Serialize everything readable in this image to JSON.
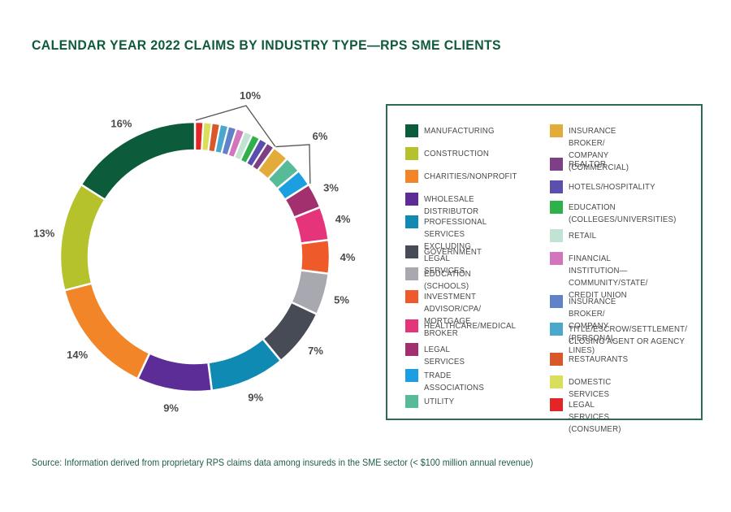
{
  "chart_data": {
    "type": "pie",
    "style": "donut",
    "title": "CALENDAR YEAR 2022 CLAIMS BY INDUSTRY TYPE—RPS SME CLIENTS",
    "source": "Source: Information derived from proprietary RPS claims data among insureds in the SME sector (< $100 million annual revenue)",
    "unit": "%",
    "start": "12 o'clock, clockwise",
    "slices": [
      {
        "name": "LEGAL SERVICES (CONSUMER)",
        "value": 1,
        "color": "#e42528",
        "group": "small"
      },
      {
        "name": "DOMESTIC SERVICES",
        "value": 1,
        "color": "#d9df5a",
        "group": "small"
      },
      {
        "name": "RESTAURANTS",
        "value": 1,
        "color": "#d9582a",
        "group": "small"
      },
      {
        "name": "TITLE/ESCROW/SETTLEMENT/\nCLOSING AGENT OR AGENCY",
        "value": 1,
        "color": "#4aa8cc",
        "group": "small"
      },
      {
        "name": "INSURANCE BROKER/\nCOMPANY (PERSONAL LINES)",
        "value": 1,
        "color": "#5f83c8",
        "group": "small"
      },
      {
        "name": "FINANCIAL INSTITUTION—\nCOMMUNITY/STATE/\nCREDIT UNION",
        "value": 1,
        "color": "#d275bd",
        "group": "small"
      },
      {
        "name": "RETAIL",
        "value": 1,
        "color": "#c2e3d3",
        "group": "small"
      },
      {
        "name": "EDUCATION\n(COLLEGES/UNIVERSITIES)",
        "value": 1,
        "color": "#2eb04a",
        "group": "small"
      },
      {
        "name": "HOTELS/HOSPITALITY",
        "value": 1,
        "color": "#5b4fae",
        "group": "small"
      },
      {
        "name": "REALTOR",
        "value": 1,
        "color": "#7f3f84",
        "group": "small"
      },
      {
        "name": "INSURANCE BROKER/\nCOMPANY (COMMERCIAL)",
        "value": 2,
        "color": "#e3ac3a",
        "group": "mid"
      },
      {
        "name": "UTILITY",
        "value": 2,
        "color": "#57bb99",
        "group": "mid"
      },
      {
        "name": "TRADE ASSOCIATIONS",
        "value": 2,
        "color": "#1b9fe0",
        "group": "mid"
      },
      {
        "name": "LEGAL SERVICES",
        "value": 3,
        "color": "#a2306f",
        "label": "3%"
      },
      {
        "name": "HEALTHCARE/MEDICAL",
        "value": 4,
        "color": "#e5347a",
        "label": "4%"
      },
      {
        "name": "INVESTMENT ADVISOR/CPA/\nMORTGAGE BROKER",
        "value": 4,
        "color": "#ef5a2b",
        "label": "4%"
      },
      {
        "name": "EDUCATION (SCHOOLS)",
        "value": 5,
        "color": "#a8a8b0",
        "label": "5%"
      },
      {
        "name": "GOVERNMENT",
        "value": 7,
        "color": "#474b55",
        "label": "7%"
      },
      {
        "name": "PROFESSIONAL SERVICES\nEXCLUDING LEGAL SERVICES",
        "value": 9,
        "color": "#0f8bb3",
        "label": "9%"
      },
      {
        "name": "WHOLESALE DISTRIBUTOR",
        "value": 9,
        "color": "#5c2d96",
        "label": "9%"
      },
      {
        "name": "CHARITIES/NONPROFIT",
        "value": 14,
        "color": "#f28528",
        "label": "14%"
      },
      {
        "name": "CONSTRUCTION",
        "value": 13,
        "color": "#b5c22c",
        "label": "13%"
      },
      {
        "name": "MANUFACTURING",
        "value": 16,
        "color": "#0c5b3a",
        "label": "16%"
      }
    ],
    "group_labels": [
      {
        "group": "small",
        "label": "10%",
        "total": 10
      },
      {
        "group": "mid",
        "label": "6%",
        "total": 6
      }
    ],
    "legend": {
      "placement": "right",
      "columns": [
        [
          "MANUFACTURING",
          "CONSTRUCTION",
          "CHARITIES/NONPROFIT",
          "WHOLESALE DISTRIBUTOR",
          "PROFESSIONAL SERVICES\nEXCLUDING LEGAL SERVICES",
          "GOVERNMENT",
          "EDUCATION (SCHOOLS)",
          "INVESTMENT ADVISOR/CPA/\nMORTGAGE BROKER",
          "HEALTHCARE/MEDICAL",
          "LEGAL SERVICES",
          "TRADE ASSOCIATIONS",
          "UTILITY"
        ],
        [
          "INSURANCE BROKER/\nCOMPANY (COMMERCIAL)",
          "REALTOR",
          "HOTELS/HOSPITALITY",
          "EDUCATION\n(COLLEGES/UNIVERSITIES)",
          "RETAIL",
          "FINANCIAL INSTITUTION—\nCOMMUNITY/STATE/\nCREDIT UNION",
          "INSURANCE BROKER/\nCOMPANY (PERSONAL LINES)",
          "TITLE/ESCROW/SETTLEMENT/\nCLOSING AGENT OR AGENCY",
          "RESTAURANTS",
          "DOMESTIC SERVICES",
          "LEGAL SERVICES (CONSUMER)"
        ]
      ]
    }
  }
}
